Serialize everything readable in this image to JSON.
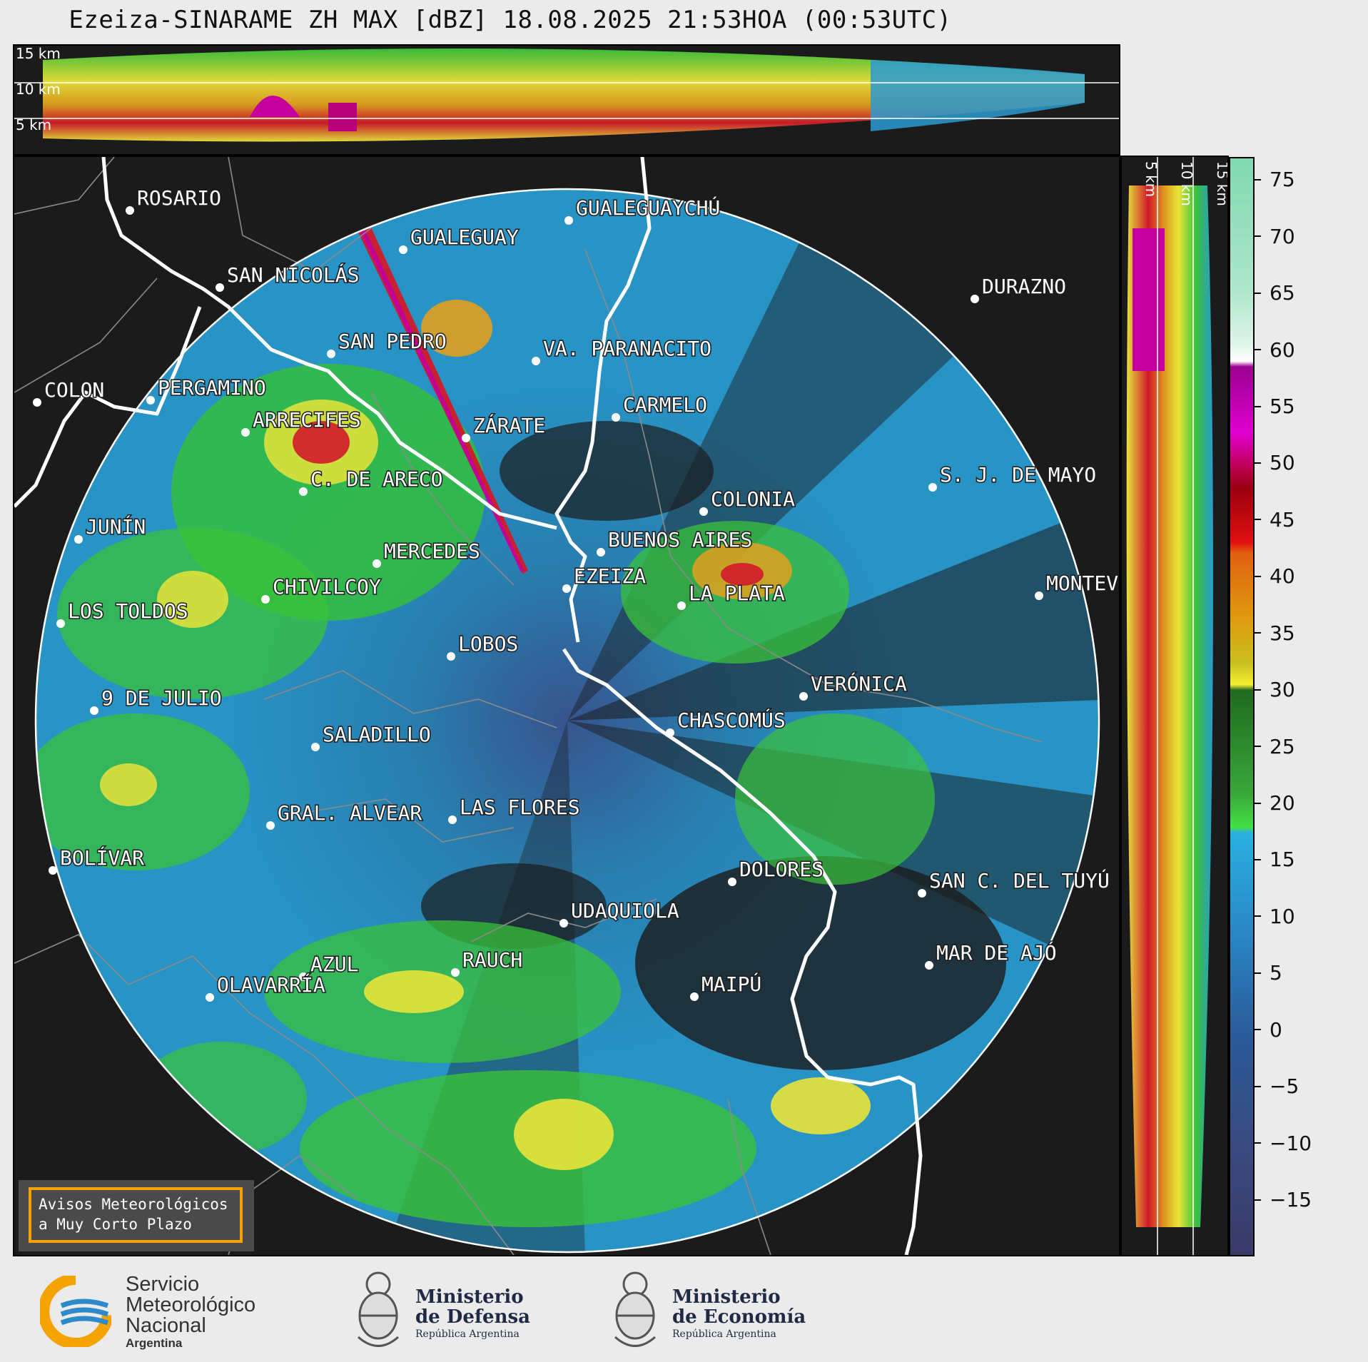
{
  "title": "Ezeiza-SINARAME ZH MAX [dBZ] 18.08.2025 21:53HOA (00:53UTC)",
  "height_labels": [
    "15 km",
    "10 km",
    "5 km"
  ],
  "side_height_labels": [
    "5 km",
    "10 km",
    "15 km"
  ],
  "cities": [
    {
      "name": "ROSARIO"
    },
    {
      "name": "GUALEGUAYCHÚ"
    },
    {
      "name": "GUALEGUAY"
    },
    {
      "name": "SAN NICOLÁS"
    },
    {
      "name": "DURAZNO"
    },
    {
      "name": "SAN PEDRO"
    },
    {
      "name": "VA. PARANACITO"
    },
    {
      "name": "COLON"
    },
    {
      "name": "PERGAMINO"
    },
    {
      "name": "CARMELO"
    },
    {
      "name": "ARRECIFES"
    },
    {
      "name": "ZÁRATE"
    },
    {
      "name": "S. J. DE MAYO"
    },
    {
      "name": "C. DE ARECO"
    },
    {
      "name": "COLONIA"
    },
    {
      "name": "JUNÍN"
    },
    {
      "name": "BUENOS AIRES"
    },
    {
      "name": "MERCEDES"
    },
    {
      "name": "EZEIZA"
    },
    {
      "name": "MONTEVIDEO"
    },
    {
      "name": "CHIVILCOY"
    },
    {
      "name": "LA PLATA"
    },
    {
      "name": "LOS TOLDOS"
    },
    {
      "name": "LOBOS"
    },
    {
      "name": "VERÓNICA"
    },
    {
      "name": "9 DE JULIO"
    },
    {
      "name": "CHASCOMÚS"
    },
    {
      "name": "SALADILLO"
    },
    {
      "name": "GRAL. ALVEAR"
    },
    {
      "name": "LAS FLORES"
    },
    {
      "name": "BOLÍVAR"
    },
    {
      "name": "DOLORES"
    },
    {
      "name": "SAN C. DEL TUYÚ"
    },
    {
      "name": "UDAQUIOLA"
    },
    {
      "name": "MAR DE AJÓ"
    },
    {
      "name": "AZUL"
    },
    {
      "name": "RAUCH"
    },
    {
      "name": "OLAVARRÍA"
    },
    {
      "name": "MAIPÚ"
    }
  ],
  "colorbar": {
    "ticks": [
      "75",
      "70",
      "65",
      "60",
      "55",
      "50",
      "45",
      "40",
      "35",
      "30",
      "25",
      "20",
      "15",
      "10",
      "5",
      "0",
      "−5",
      "−10",
      "−15"
    ],
    "range": [
      -20,
      77
    ]
  },
  "alert": {
    "line1": "Avisos Meteorológicos",
    "line2": "a Muy Corto Plazo"
  },
  "footer": {
    "smn": {
      "line1": "Servicio",
      "line2": "Meteorológico",
      "line3": "Nacional",
      "line4": "Argentina"
    },
    "defensa": {
      "line1": "Ministerio",
      "line2": "de Defensa",
      "line3": "República Argentina"
    },
    "economia": {
      "line1": "Ministerio",
      "line2": "de Economía",
      "line3": "República Argentina"
    }
  },
  "colors": {
    "background": "#1b1b1b",
    "ring": "#ffffff",
    "accent": "#f5a300",
    "smn_blue": "#2e8bc9"
  }
}
